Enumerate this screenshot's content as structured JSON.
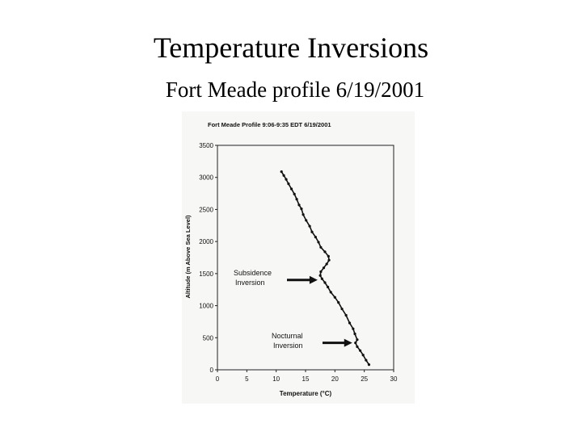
{
  "slide": {
    "title": "Temperature Inversions",
    "subtitle": "Fort Meade profile 6/19/2001"
  },
  "chart_data": {
    "type": "line",
    "title": "Fort Meade Profile 9:06-9:35 EDT 6/19/2001",
    "xlabel": "Temperature (°C)",
    "ylabel": "Altitude (m Above Sea Level)",
    "xlim": [
      0,
      30
    ],
    "ylim": [
      0,
      3500
    ],
    "x_ticks": [
      "0",
      "5",
      "10",
      "15",
      "20",
      "25",
      "30"
    ],
    "y_ticks": [
      "0",
      "500",
      "1000",
      "1500",
      "2000",
      "2500",
      "3000",
      "3500"
    ],
    "grid": false,
    "series": [
      {
        "points": [
          [
            25.8,
            80
          ],
          [
            25.3,
            150
          ],
          [
            24.8,
            230
          ],
          [
            24.3,
            300
          ],
          [
            23.8,
            360
          ],
          [
            23.5,
            420
          ],
          [
            23.8,
            470
          ],
          [
            23.4,
            560
          ],
          [
            23.1,
            640
          ],
          [
            22.5,
            730
          ],
          [
            21.9,
            850
          ],
          [
            21.2,
            950
          ],
          [
            20.6,
            1050
          ],
          [
            20.0,
            1130
          ],
          [
            19.3,
            1210
          ],
          [
            18.8,
            1290
          ],
          [
            18.3,
            1360
          ],
          [
            17.8,
            1420
          ],
          [
            17.5,
            1470
          ],
          [
            17.6,
            1530
          ],
          [
            18.1,
            1590
          ],
          [
            18.6,
            1650
          ],
          [
            19.0,
            1710
          ],
          [
            18.9,
            1770
          ],
          [
            18.3,
            1840
          ],
          [
            17.6,
            1910
          ],
          [
            17.2,
            1990
          ],
          [
            16.7,
            2070
          ],
          [
            16.1,
            2150
          ],
          [
            15.7,
            2240
          ],
          [
            15.1,
            2330
          ],
          [
            14.6,
            2420
          ],
          [
            14.3,
            2510
          ],
          [
            13.9,
            2570
          ],
          [
            13.5,
            2660
          ],
          [
            13.1,
            2740
          ],
          [
            12.6,
            2820
          ],
          [
            12.1,
            2900
          ],
          [
            11.7,
            2970
          ],
          [
            11.3,
            3030
          ],
          [
            10.9,
            3090
          ]
        ]
      }
    ],
    "annotations": [
      {
        "lines": [
          "Subsidence",
          "Inversion"
        ],
        "arrow_to": [
          17.6,
          1400
        ]
      },
      {
        "lines": [
          "Nocturnal",
          "Inversion"
        ],
        "arrow_to": [
          23.5,
          420
        ]
      }
    ]
  }
}
